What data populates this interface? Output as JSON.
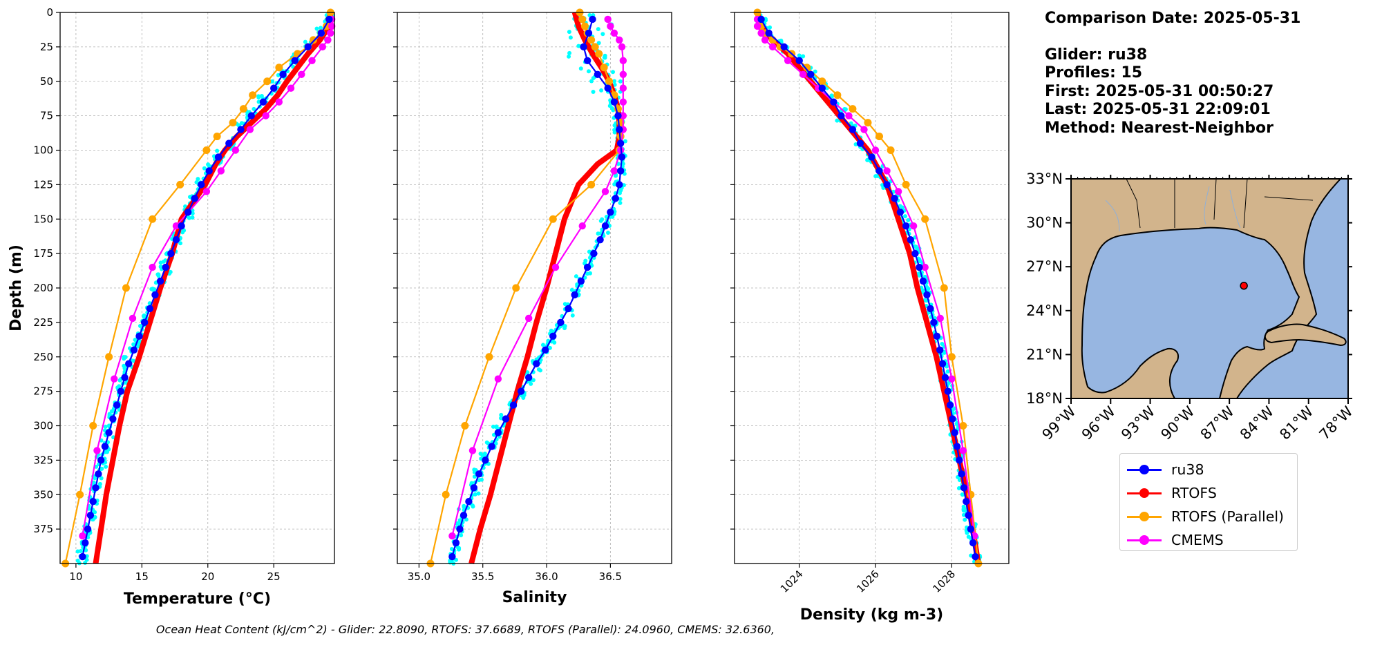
{
  "figure": {
    "footer": "Ocean Heat Content (kJ/cm^2) - Glider: 22.8090,  RTOFS: 37.6689,  RTOFS (Parallel): 24.0960,  CMEMS: 32.6360,"
  },
  "info": {
    "comparison_date": "Comparison Date: 2025-05-31",
    "glider": "Glider: ru38",
    "profiles": "Profiles: 15",
    "first": "First: 2025-05-31 00:50:27",
    "last": "Last: 2025-05-31 22:09:01",
    "method": "Method: Nearest-Neighbor"
  },
  "legend": {
    "items": [
      {
        "label": "ru38",
        "color": "#0000ff"
      },
      {
        "label": "RTOFS",
        "color": "#ff0000"
      },
      {
        "label": "RTOFS (Parallel)",
        "color": "#ffa500"
      },
      {
        "label": "CMEMS",
        "color": "#ff00ff"
      }
    ]
  },
  "colors": {
    "glider_scatter": "#00ffff",
    "ru38": "#0000ff",
    "RTOFS": "#ff0000",
    "RTOFS_parallel": "#ffa500",
    "CMEMS": "#ff00ff",
    "land": "#d2b48c",
    "water": "#97b6e1",
    "grid": "#b0b0b0"
  },
  "chart_data": [
    {
      "type": "line",
      "panel": "temperature",
      "xlabel": "Temperature (°C)",
      "ylabel": "Depth (m)",
      "xlim": [
        8.8,
        29.6
      ],
      "ylim": [
        400,
        0
      ],
      "xticks": [
        10,
        15,
        20,
        25
      ],
      "yticks": [
        0,
        25,
        50,
        75,
        100,
        125,
        150,
        175,
        200,
        225,
        250,
        275,
        300,
        325,
        350,
        375
      ],
      "grid": true,
      "series": [
        {
          "name": "ru38",
          "depth": [
            5,
            15,
            25,
            35,
            45,
            55,
            65,
            75,
            85,
            95,
            105,
            115,
            125,
            135,
            145,
            155,
            165,
            175,
            185,
            195,
            205,
            215,
            225,
            235,
            245,
            255,
            265,
            275,
            285,
            295,
            305,
            315,
            325,
            335,
            345,
            355,
            365,
            375,
            385,
            395
          ],
          "values": [
            29.2,
            28.6,
            27.6,
            26.6,
            25.7,
            25.0,
            24.2,
            23.3,
            22.5,
            21.6,
            20.8,
            20.1,
            19.5,
            19.0,
            18.5,
            18.0,
            17.6,
            17.2,
            16.8,
            16.4,
            16.0,
            15.6,
            15.2,
            14.8,
            14.4,
            14.0,
            13.7,
            13.4,
            13.1,
            12.8,
            12.5,
            12.2,
            11.9,
            11.7,
            11.5,
            11.3,
            11.1,
            10.9,
            10.7,
            10.5
          ]
        },
        {
          "name": "RTOFS",
          "depth": [
            0,
            10,
            20,
            30,
            40,
            50,
            60,
            70,
            80,
            90,
            100,
            110,
            125,
            150,
            175,
            200,
            225,
            250,
            275,
            300,
            325,
            350,
            375,
            400
          ],
          "values": [
            29.3,
            29.2,
            28.5,
            27.6,
            26.8,
            26.0,
            25.3,
            24.4,
            23.3,
            22.2,
            21.3,
            20.6,
            19.8,
            18.0,
            17.3,
            16.4,
            15.6,
            14.8,
            13.9,
            13.3,
            12.8,
            12.3,
            11.9,
            11.5
          ]
        },
        {
          "name": "RTOFS (Parallel)",
          "depth": [
            0,
            5,
            10,
            15,
            20,
            25,
            30,
            40,
            50,
            60,
            70,
            80,
            90,
            100,
            125,
            150,
            200,
            250,
            300,
            350,
            400
          ],
          "values": [
            29.3,
            29.2,
            29.0,
            28.6,
            28.0,
            27.6,
            26.8,
            25.4,
            24.5,
            23.4,
            22.7,
            21.9,
            20.7,
            19.9,
            17.9,
            15.8,
            13.8,
            12.5,
            11.3,
            10.3,
            9.2
          ]
        },
        {
          "name": "CMEMS",
          "depth": [
            5,
            10,
            15,
            20,
            25,
            35,
            45,
            55,
            65,
            75,
            85,
            100,
            115,
            130,
            155,
            185,
            222,
            266,
            318,
            380
          ],
          "values": [
            29.4,
            29.4,
            29.3,
            29.1,
            28.7,
            27.9,
            27.1,
            26.3,
            25.4,
            24.4,
            23.2,
            22.1,
            21.0,
            19.9,
            17.6,
            15.8,
            14.3,
            12.9,
            11.6,
            10.5
          ]
        }
      ]
    },
    {
      "type": "line",
      "panel": "salinity",
      "xlabel": "Salinity",
      "xlim": [
        34.83,
        36.98
      ],
      "ylim": [
        400,
        0
      ],
      "xticks": [
        35.0,
        35.5,
        36.0,
        36.5
      ],
      "grid": true,
      "series": [
        {
          "name": "ru38",
          "depth": [
            5,
            15,
            25,
            35,
            45,
            55,
            65,
            75,
            85,
            95,
            105,
            115,
            125,
            135,
            145,
            155,
            165,
            175,
            185,
            195,
            205,
            215,
            225,
            235,
            245,
            255,
            265,
            275,
            285,
            295,
            305,
            315,
            325,
            335,
            345,
            355,
            365,
            375,
            385,
            395
          ],
          "values": [
            36.36,
            36.33,
            36.29,
            36.32,
            36.4,
            36.48,
            36.53,
            36.56,
            36.57,
            36.58,
            36.59,
            36.58,
            36.57,
            36.54,
            36.5,
            36.46,
            36.42,
            36.37,
            36.32,
            36.27,
            36.22,
            36.17,
            36.11,
            36.05,
            35.99,
            35.92,
            35.86,
            35.8,
            35.74,
            35.68,
            35.62,
            35.57,
            35.52,
            35.47,
            35.43,
            35.39,
            35.35,
            35.32,
            35.29,
            35.26
          ]
        },
        {
          "name": "RTOFS",
          "depth": [
            0,
            10,
            20,
            30,
            40,
            50,
            60,
            70,
            80,
            90,
            100,
            110,
            125,
            150,
            175,
            200,
            225,
            250,
            275,
            300,
            325,
            350,
            375,
            400
          ],
          "values": [
            36.22,
            36.25,
            36.3,
            36.36,
            36.43,
            36.49,
            36.53,
            36.56,
            36.57,
            36.57,
            36.55,
            36.4,
            36.25,
            36.14,
            36.07,
            36.0,
            35.92,
            35.85,
            35.77,
            35.7,
            35.63,
            35.56,
            35.48,
            35.41
          ]
        },
        {
          "name": "RTOFS (Parallel)",
          "depth": [
            0,
            5,
            10,
            15,
            20,
            25,
            30,
            40,
            50,
            60,
            70,
            80,
            90,
            100,
            125,
            150,
            200,
            250,
            300,
            350,
            400
          ],
          "values": [
            36.26,
            36.28,
            36.3,
            36.32,
            36.35,
            36.38,
            36.41,
            36.45,
            36.49,
            36.53,
            36.56,
            36.58,
            36.58,
            36.57,
            36.35,
            36.05,
            35.76,
            35.55,
            35.36,
            35.21,
            35.09
          ]
        },
        {
          "name": "CMEMS",
          "depth": [
            5,
            10,
            15,
            20,
            25,
            35,
            45,
            55,
            65,
            75,
            85,
            100,
            115,
            130,
            155,
            185,
            222,
            266,
            318,
            380
          ],
          "values": [
            36.48,
            36.5,
            36.53,
            36.57,
            36.59,
            36.6,
            36.6,
            36.6,
            36.6,
            36.6,
            36.6,
            36.58,
            36.53,
            36.46,
            36.28,
            36.07,
            35.86,
            35.62,
            35.42,
            35.26
          ]
        }
      ]
    },
    {
      "type": "line",
      "panel": "density",
      "xlabel": "Density (kg m-3)",
      "xlim": [
        1022.3,
        1029.5
      ],
      "ylim": [
        400,
        0
      ],
      "xticks": [
        1024,
        1026,
        1028
      ],
      "grid": true,
      "series": [
        {
          "name": "ru38",
          "depth": [
            5,
            15,
            25,
            35,
            45,
            55,
            65,
            75,
            85,
            95,
            105,
            115,
            125,
            135,
            145,
            155,
            165,
            175,
            185,
            195,
            205,
            215,
            225,
            235,
            245,
            255,
            265,
            275,
            285,
            295,
            305,
            315,
            325,
            335,
            345,
            355,
            365,
            375,
            385,
            395
          ],
          "values": [
            1023.0,
            1023.2,
            1023.6,
            1024.0,
            1024.3,
            1024.6,
            1024.9,
            1025.1,
            1025.4,
            1025.6,
            1025.9,
            1026.1,
            1026.3,
            1026.5,
            1026.65,
            1026.8,
            1026.92,
            1027.04,
            1027.15,
            1027.25,
            1027.35,
            1027.44,
            1027.53,
            1027.61,
            1027.69,
            1027.76,
            1027.83,
            1027.9,
            1027.96,
            1028.02,
            1028.08,
            1028.14,
            1028.2,
            1028.26,
            1028.32,
            1028.38,
            1028.44,
            1028.5,
            1028.56,
            1028.62
          ]
        },
        {
          "name": "RTOFS",
          "depth": [
            0,
            10,
            20,
            30,
            40,
            50,
            60,
            70,
            80,
            90,
            100,
            110,
            125,
            150,
            175,
            200,
            225,
            250,
            275,
            300,
            325,
            350,
            375,
            400
          ],
          "values": [
            1022.9,
            1023.0,
            1023.3,
            1023.7,
            1024.0,
            1024.3,
            1024.6,
            1024.9,
            1025.2,
            1025.5,
            1025.8,
            1026.0,
            1026.3,
            1026.6,
            1026.9,
            1027.1,
            1027.35,
            1027.6,
            1027.8,
            1028.0,
            1028.2,
            1028.4,
            1028.55,
            1028.7
          ]
        },
        {
          "name": "RTOFS (Parallel)",
          "depth": [
            0,
            5,
            10,
            15,
            20,
            25,
            30,
            40,
            50,
            60,
            70,
            80,
            90,
            100,
            125,
            150,
            200,
            250,
            300,
            350,
            400
          ],
          "values": [
            1022.9,
            1022.95,
            1023.0,
            1023.1,
            1023.3,
            1023.5,
            1023.8,
            1024.2,
            1024.6,
            1025.0,
            1025.4,
            1025.8,
            1026.1,
            1026.4,
            1026.8,
            1027.3,
            1027.8,
            1028.0,
            1028.3,
            1028.5,
            1028.7
          ]
        },
        {
          "name": "CMEMS",
          "depth": [
            5,
            10,
            15,
            20,
            25,
            35,
            45,
            55,
            65,
            75,
            85,
            100,
            115,
            130,
            155,
            185,
            222,
            266,
            318,
            380
          ],
          "values": [
            1022.9,
            1022.9,
            1023.0,
            1023.1,
            1023.3,
            1023.7,
            1024.1,
            1024.5,
            1024.9,
            1025.3,
            1025.7,
            1026.0,
            1026.3,
            1026.6,
            1027.0,
            1027.3,
            1027.7,
            1028.0,
            1028.3,
            1028.6
          ]
        }
      ]
    },
    {
      "type": "map",
      "panel": "location",
      "lon_ticks": [
        "99°W",
        "96°W",
        "93°W",
        "90°W",
        "87°W",
        "84°W",
        "81°W",
        "78°W"
      ],
      "lat_ticks": [
        "18°N",
        "21°N",
        "24°N",
        "27°N",
        "30°N",
        "33°N"
      ],
      "lon_range": [
        -99,
        -78
      ],
      "lat_range": [
        18,
        33
      ],
      "glider_position": {
        "lon": -85.9,
        "lat": 25.7
      }
    }
  ]
}
